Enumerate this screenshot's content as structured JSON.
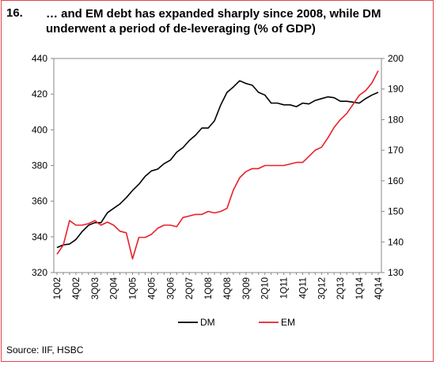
{
  "figure": {
    "number": "16.",
    "title": "… and EM debt has expanded sharply since 2008, while DM underwent a period of de-leveraging (% of GDP)",
    "source": "Source: IIF, HSBC"
  },
  "colors": {
    "frame": "#e0474c",
    "dm": "#000000",
    "em": "#e8202a",
    "axis": "#888888"
  },
  "chart_data": {
    "type": "line",
    "title": "… and EM debt has expanded sharply since 2008, while DM underwent a period of de-leveraging (% of GDP)",
    "xlabel": "",
    "ylabel": "",
    "ylim": [
      320,
      440
    ],
    "y2lim": [
      130,
      200
    ],
    "yticks": [
      320,
      340,
      360,
      380,
      400,
      420,
      440
    ],
    "y2ticks": [
      130,
      140,
      150,
      160,
      170,
      180,
      190,
      200
    ],
    "categories": [
      "1Q02",
      "2Q02",
      "3Q02",
      "4Q02",
      "1Q03",
      "2Q03",
      "3Q03",
      "4Q03",
      "1Q04",
      "2Q04",
      "3Q04",
      "4Q04",
      "1Q05",
      "2Q05",
      "3Q05",
      "4Q05",
      "1Q06",
      "2Q06",
      "3Q06",
      "4Q06",
      "1Q07",
      "2Q07",
      "3Q07",
      "4Q07",
      "1Q08",
      "2Q08",
      "3Q08",
      "4Q08",
      "1Q09",
      "2Q09",
      "3Q09",
      "4Q09",
      "1Q10",
      "2Q10",
      "3Q10",
      "4Q10",
      "1Q11",
      "2Q11",
      "3Q11",
      "4Q11",
      "1Q12",
      "2Q12",
      "3Q12",
      "4Q12",
      "1Q13",
      "2Q13",
      "3Q13",
      "4Q13",
      "1Q14",
      "2Q14",
      "3Q14",
      "4Q14"
    ],
    "xtick_labels": [
      "1Q02",
      "4Q02",
      "3Q03",
      "2Q04",
      "1Q05",
      "4Q05",
      "3Q06",
      "2Q07",
      "1Q08",
      "4Q08",
      "3Q09",
      "2Q10",
      "1Q11",
      "4Q11",
      "3Q12",
      "2Q13",
      "1Q14",
      "4Q14"
    ],
    "series": [
      {
        "name": "DM",
        "axis": "left",
        "values": [
          334,
          335.5,
          336,
          338.5,
          343,
          346.5,
          348,
          348,
          353.5,
          356,
          358.5,
          362,
          366,
          369.5,
          374,
          377,
          378,
          381,
          383,
          387.5,
          390,
          394,
          397,
          401,
          401,
          405,
          414,
          421,
          424,
          427.5,
          426,
          425,
          421,
          419.5,
          415,
          415,
          414,
          414,
          413,
          415,
          414.5,
          416.5,
          417.5,
          418.5,
          418,
          416,
          416,
          415.5,
          415,
          417.5,
          419.5,
          421
        ]
      },
      {
        "name": "EM",
        "axis": "right",
        "values": [
          136,
          139,
          147,
          145.5,
          145.5,
          146,
          147,
          145.5,
          146.5,
          145.5,
          143.5,
          143,
          134.5,
          141.5,
          141.5,
          142.5,
          144.5,
          145.5,
          145.5,
          145,
          148,
          148.5,
          149,
          149,
          150,
          149.5,
          150,
          151,
          157,
          161,
          163,
          164,
          164,
          165,
          165,
          165,
          165,
          165.5,
          166,
          166,
          168,
          170,
          171,
          174,
          177.5,
          180,
          182,
          185,
          188,
          189.5,
          192,
          196
        ]
      }
    ],
    "legend": {
      "position": "bottom-center",
      "entries": [
        "DM",
        "EM"
      ]
    },
    "grid": false
  }
}
